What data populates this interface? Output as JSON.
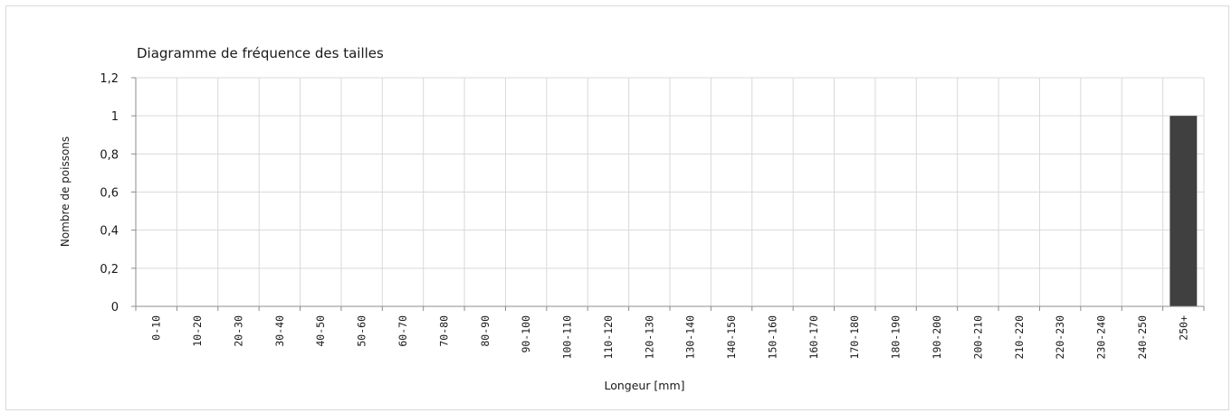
{
  "chart_data": {
    "type": "bar",
    "title": "Diagramme de fréquence des tailles",
    "xlabel": "Longeur [mm]",
    "ylabel": "Nombre de poissons",
    "categories": [
      "0-10",
      "10-20",
      "20-30",
      "30-40",
      "40-50",
      "50-60",
      "60-70",
      "70-80",
      "80-90",
      "90-100",
      "100-110",
      "110-120",
      "120-130",
      "130-140",
      "140-150",
      "150-160",
      "160-170",
      "170-180",
      "180-190",
      "190-200",
      "200-210",
      "210-220",
      "220-230",
      "230-240",
      "240-250",
      "250+"
    ],
    "values": [
      0,
      0,
      0,
      0,
      0,
      0,
      0,
      0,
      0,
      0,
      0,
      0,
      0,
      0,
      0,
      0,
      0,
      0,
      0,
      0,
      0,
      0,
      0,
      0,
      0,
      1
    ],
    "ylim": [
      0,
      1.2
    ],
    "yticks": [
      "0",
      "0,2",
      "0,4",
      "0,6",
      "0,8",
      "1",
      "1,2"
    ],
    "grid": true,
    "legend": "none",
    "colors": {
      "bar": "#404040",
      "grid": "#d9d9d9",
      "axis": "#8c8c8c"
    }
  }
}
